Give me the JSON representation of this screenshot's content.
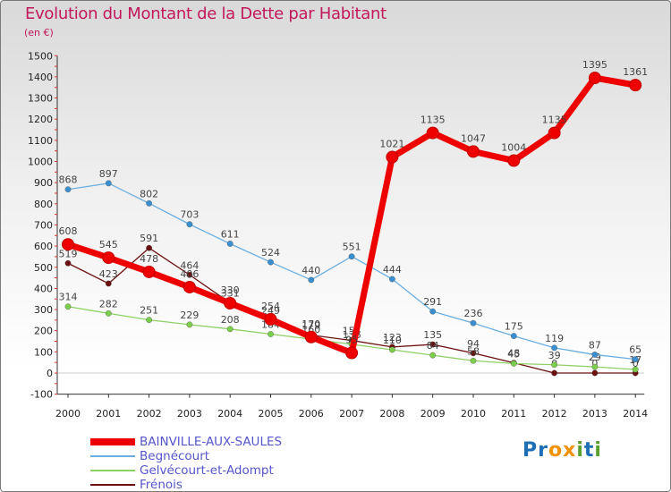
{
  "header": {
    "title": "Evolution du Montant de la Dette par Habitant",
    "unit": "(en €)"
  },
  "logo": {
    "text": "Proxiti",
    "letters": [
      "P",
      "r",
      "o",
      "x",
      "i",
      "t",
      "i"
    ],
    "colors": [
      "#1e6fb5",
      "#1e6fb5",
      "#f39200",
      "#f39200",
      "#5aa02c",
      "#1e6fb5",
      "#5aa02c"
    ]
  },
  "chart_data": {
    "type": "line",
    "title": "Evolution du Montant de la Dette par Habitant",
    "subtitle": "(en €)",
    "xlabel": "",
    "ylabel": "",
    "x": [
      "2000",
      "2001",
      "2002",
      "2003",
      "2004",
      "2005",
      "2006",
      "2007",
      "2008",
      "2009",
      "2010",
      "2011",
      "2012",
      "2013",
      "2014"
    ],
    "ylim": [
      -100,
      1500
    ],
    "yticks": [
      -100,
      0,
      100,
      200,
      300,
      400,
      500,
      600,
      700,
      800,
      900,
      1000,
      1100,
      1200,
      1300,
      1400,
      1500
    ],
    "grid": false,
    "legend_position": "bottom-left",
    "series": [
      {
        "name": "Frénois",
        "color": "#6b0f0f",
        "markerFill": "#6b0f0f",
        "width": 1.3,
        "markerR": 3.2,
        "labels": true,
        "values": [
          519,
          423,
          591,
          464,
          331,
          249,
          179,
          154,
          123,
          135,
          94,
          48,
          0,
          0,
          0
        ]
      },
      {
        "name": "Gelvécourt-et-Adompt",
        "color": "#8fd166",
        "markerFill": "#7ccf4a",
        "width": 1.3,
        "markerR": 3.2,
        "labels": true,
        "values": [
          314,
          282,
          251,
          229,
          208,
          184,
          160,
          136,
          110,
          84,
          58,
          45,
          39,
          29,
          17
        ]
      },
      {
        "name": "Begnécourt",
        "color": "#6aaee0",
        "markerFill": "#3a8fd0",
        "width": 1.3,
        "markerR": 3.2,
        "labels": true,
        "values": [
          868,
          897,
          802,
          703,
          611,
          524,
          440,
          551,
          444,
          291,
          236,
          175,
          119,
          87,
          65
        ]
      },
      {
        "name": "BAINVILLE-AUX-SAULES",
        "color": "#ee0000",
        "markerFill": "#ee0000",
        "width": 7,
        "markerR": 6.5,
        "labels": true,
        "values": [
          608,
          545,
          478,
          406,
          330,
          254,
          170,
          95,
          1021,
          1135,
          1047,
          1004,
          1135,
          1395,
          1361
        ]
      }
    ]
  },
  "legend": [
    {
      "label": "BAINVILLE-AUX-SAULES",
      "color": "#ee0000",
      "height": 8
    },
    {
      "label": "Begnécourt",
      "color": "#6aaee0",
      "height": 2
    },
    {
      "label": "Gelvécourt-et-Adompt",
      "color": "#8fd166",
      "height": 2
    },
    {
      "label": "Frénois",
      "color": "#6b0f0f",
      "height": 2
    }
  ]
}
